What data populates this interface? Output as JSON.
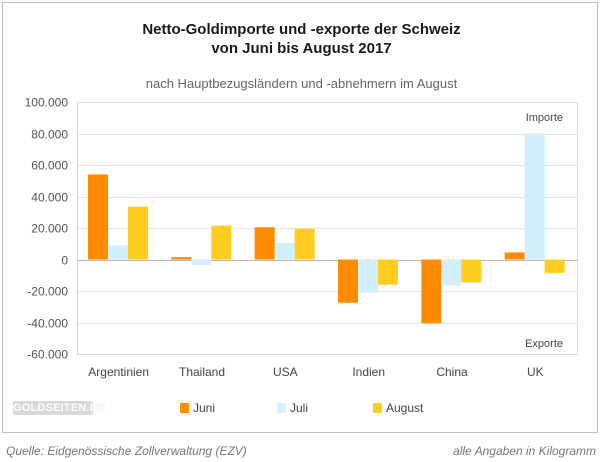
{
  "chart_data": {
    "type": "bar",
    "title_line1": "Netto-Goldimporte und -exporte der Schweiz",
    "title_line2": "von Juni bis August 2017",
    "subtitle": "nach Hauptbezugsländern und -abnehmern im August",
    "categories": [
      "Argentinien",
      "Thailand",
      "USA",
      "Indien",
      "China",
      "UK"
    ],
    "series": [
      {
        "name": "Juni",
        "color": "#ff8c00",
        "values": [
          54000,
          1500,
          20500,
          -27500,
          -40500,
          4500
        ]
      },
      {
        "name": "Juli",
        "color": "#d2f0fb",
        "values": [
          9000,
          -3500,
          10500,
          -21000,
          -16500,
          80000
        ]
      },
      {
        "name": "August",
        "color": "#ffcc22",
        "values": [
          33500,
          21500,
          19500,
          -16000,
          -14500,
          -8500
        ]
      }
    ],
    "ylim": [
      -60000,
      100000
    ],
    "yticks": [
      100000,
      80000,
      60000,
      40000,
      20000,
      0,
      -20000,
      -40000,
      -60000
    ],
    "ytick_labels": [
      "100.000",
      "80.000",
      "60.000",
      "40.000",
      "20.000",
      "0",
      "-20.000",
      "-40.000",
      "-60.000"
    ],
    "annotations": {
      "top": "Importe",
      "bottom": "Exporte"
    },
    "legend_position": "bottom"
  },
  "logo": "GOLDSEITEN.DE",
  "footer": {
    "source": "Quelle: Eidgenössische Zollverwaltung (EZV)",
    "note": "alle Angaben in Kilogramm"
  }
}
